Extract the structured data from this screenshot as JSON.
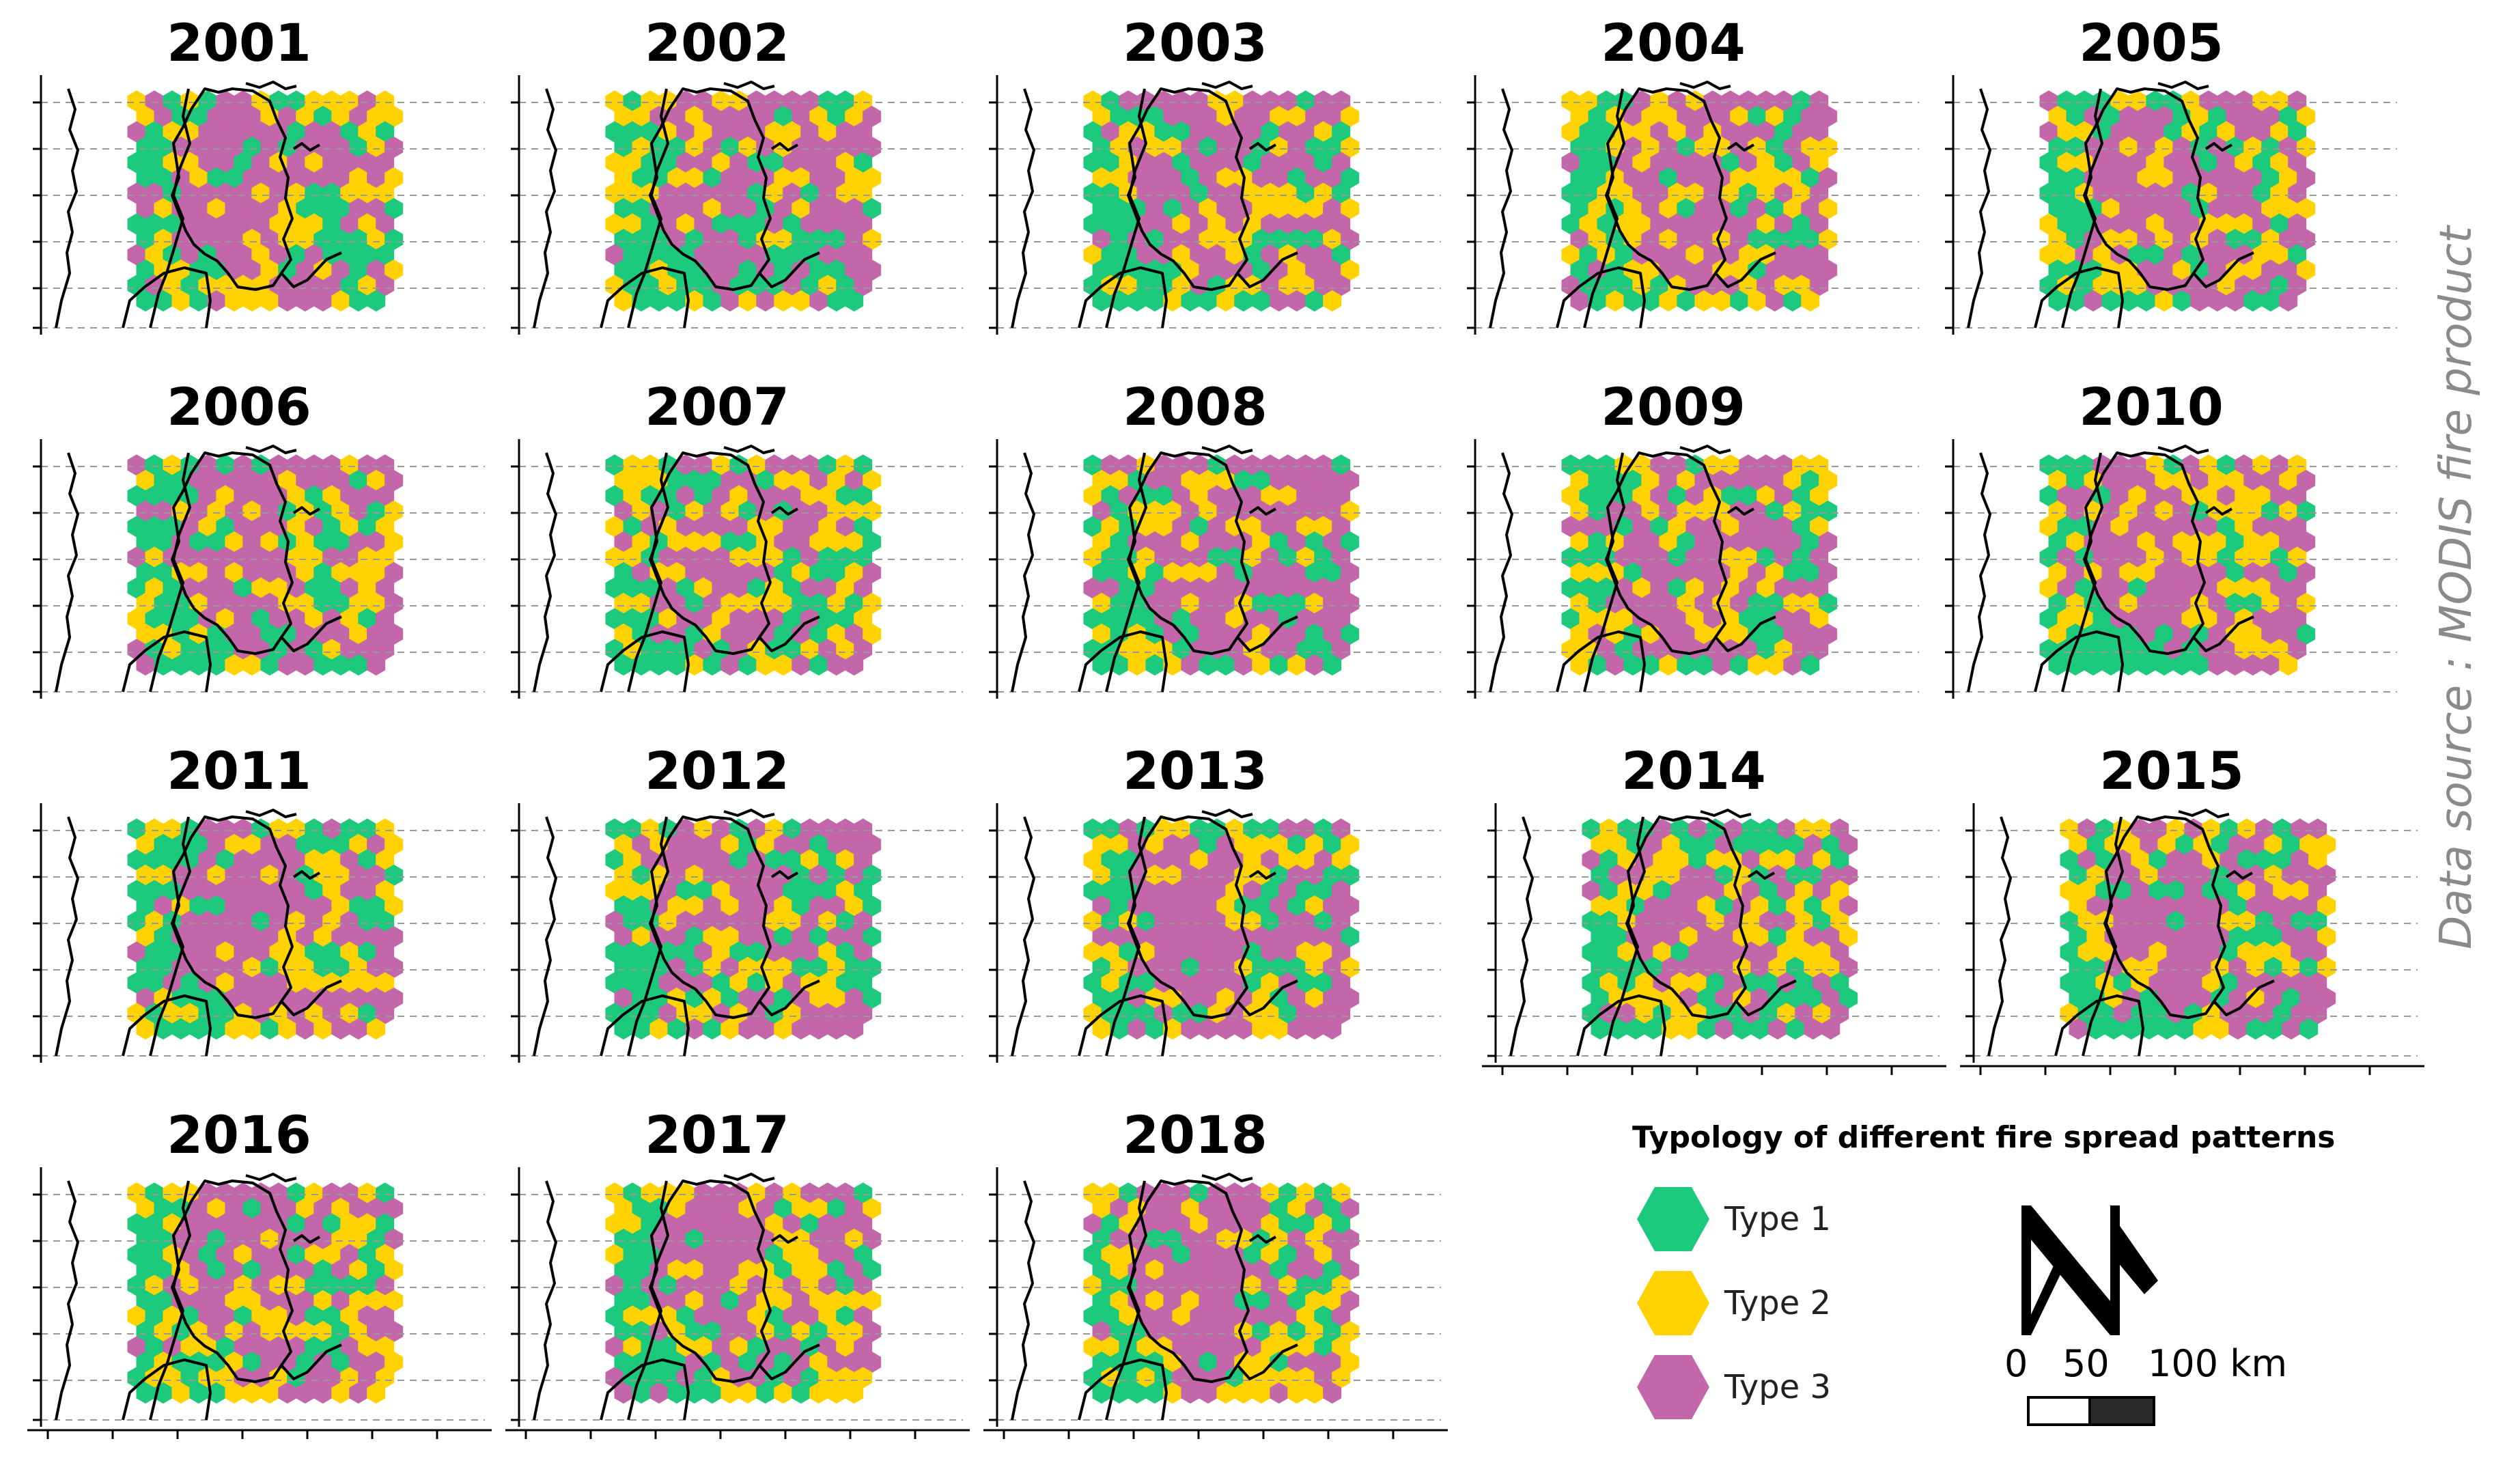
{
  "panels": [
    {
      "year": "2001"
    },
    {
      "year": "2002"
    },
    {
      "year": "2003"
    },
    {
      "year": "2004"
    },
    {
      "year": "2005"
    },
    {
      "year": "2006"
    },
    {
      "year": "2007"
    },
    {
      "year": "2008"
    },
    {
      "year": "2009"
    },
    {
      "year": "2010"
    },
    {
      "year": "2011"
    },
    {
      "year": "2012"
    },
    {
      "year": "2013"
    },
    {
      "year": "2014"
    },
    {
      "year": "2015"
    },
    {
      "year": "2016"
    },
    {
      "year": "2017"
    },
    {
      "year": "2018"
    }
  ],
  "legend": {
    "title": "Typology of different fire spread patterns",
    "items": [
      {
        "label": "Type 1",
        "color": "#1dc97c"
      },
      {
        "label": "Type 2",
        "color": "#ffd200"
      },
      {
        "label": "Type 3",
        "color": "#c466aa"
      }
    ]
  },
  "scale_bar": {
    "labels": [
      "0",
      "50",
      "100 km"
    ]
  },
  "north_arrow_icon": "north-arrow-icon",
  "source": "Data source : MODIS fire product"
}
